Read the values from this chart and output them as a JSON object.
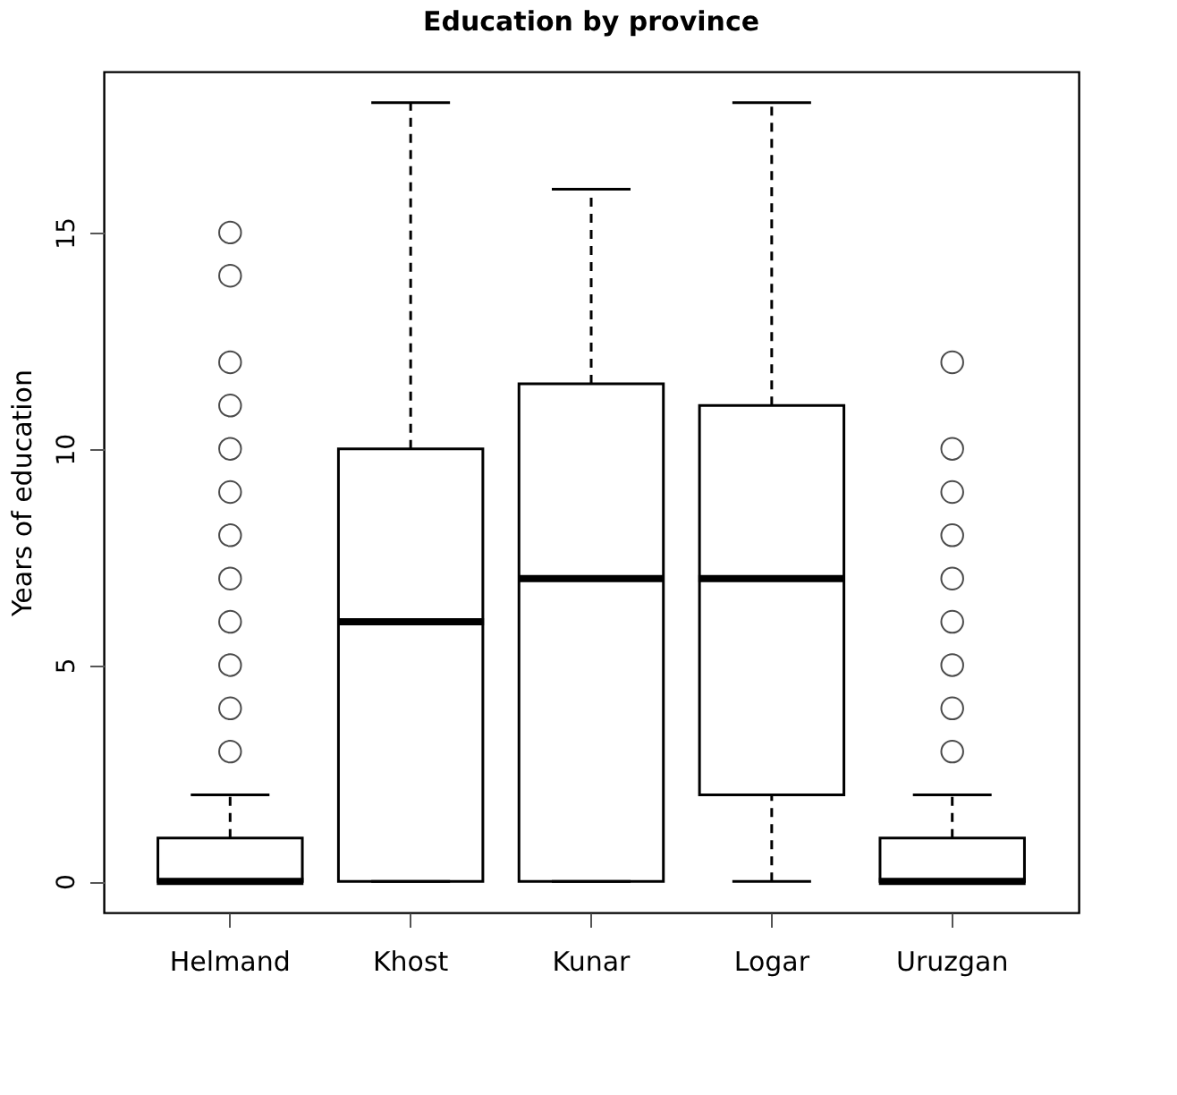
{
  "chart_data": {
    "type": "box",
    "title": "Education by province",
    "ylabel": "Years of education",
    "categories": [
      "Helmand",
      "Khost",
      "Kunar",
      "Logar",
      "Uruzgan"
    ],
    "boxes": [
      {
        "low": 0,
        "q1": 0,
        "median": 0,
        "q3": 1,
        "high": 2,
        "outliers": [
          3,
          4,
          5,
          6,
          7,
          8,
          9,
          10,
          11,
          12,
          14,
          15
        ]
      },
      {
        "low": 0,
        "q1": 0,
        "median": 6,
        "q3": 10,
        "high": 18
      },
      {
        "low": 0,
        "q1": 0,
        "median": 7,
        "q3": 11.5,
        "high": 16
      },
      {
        "low": 0,
        "q1": 2,
        "median": 7,
        "q3": 11,
        "high": 18
      },
      {
        "low": 0,
        "q1": 0,
        "median": 0,
        "q3": 1,
        "high": 2,
        "outliers": [
          3,
          4,
          5,
          6,
          7,
          8,
          9,
          10,
          12
        ]
      }
    ],
    "ylim": [
      -0.72,
      18.72
    ],
    "yticks": [
      0,
      5,
      10,
      15
    ],
    "grid": false
  }
}
